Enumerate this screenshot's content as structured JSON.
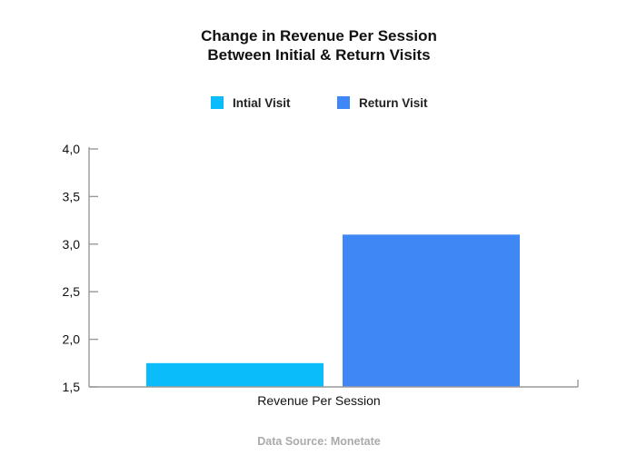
{
  "chart_data": {
    "type": "bar",
    "title_lines": [
      "Change in Revenue Per Session",
      "Between Initial & Return Visits"
    ],
    "categories": [
      "Revenue Per Session"
    ],
    "series": [
      {
        "name": "Intial Visit",
        "values": [
          1.75
        ],
        "color": "#0bbcfa"
      },
      {
        "name": "Return Visit",
        "values": [
          3.1
        ],
        "color": "#3f87f5"
      }
    ],
    "ylim": [
      1.5,
      4.0
    ],
    "yticks": [
      "1,5",
      "2,0",
      "2,5",
      "3,0",
      "3,5",
      "4,0"
    ],
    "ytick_values": [
      1.5,
      2.0,
      2.5,
      3.0,
      3.5,
      4.0
    ],
    "legend": "top-center",
    "grid": false
  },
  "source_text": "Data Source: Monetate"
}
